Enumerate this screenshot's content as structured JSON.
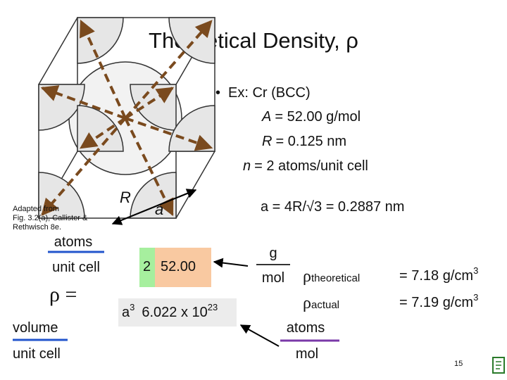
{
  "title": "Theoretical Density, ρ",
  "example": {
    "bullet": "Ex: Cr (BCC)",
    "params": [
      {
        "symbol": "A",
        "text": "= 52.00 g/mol"
      },
      {
        "symbol": "R",
        "text": "= 0.125 nm"
      },
      {
        "symbol": "n",
        "text": "= 2 atoms/unit cell"
      }
    ],
    "lattice": "a = 4R/√3 = 0.2887 nm"
  },
  "figure": {
    "credit": [
      "Adapted from",
      "Fig. 3.2(a), Callister &",
      "Rethwisch 8e."
    ],
    "labels": {
      "radius": "R",
      "edge": "a"
    }
  },
  "equation": {
    "rho": "ρ =",
    "numerator": [
      "atoms",
      "unit cell"
    ],
    "denominator": [
      "volume",
      "unit cell"
    ],
    "n": "2",
    "A": "52.00",
    "a_base": "a",
    "a_exp": "3",
    "avogadro_base": "6.022 x 10",
    "avogadro_exp": "23",
    "unit": [
      "g",
      "mol"
    ],
    "conversion": [
      "atoms",
      "mol"
    ]
  },
  "results": [
    {
      "symbol": "ρ",
      "subscript": "theoretical",
      "base": "= 7.18 g/cm",
      "exp": "3"
    },
    {
      "symbol": "ρ",
      "subscript": "actual",
      "base": "= 7.19 g/cm",
      "exp": "3"
    }
  ],
  "page_number": "15"
}
